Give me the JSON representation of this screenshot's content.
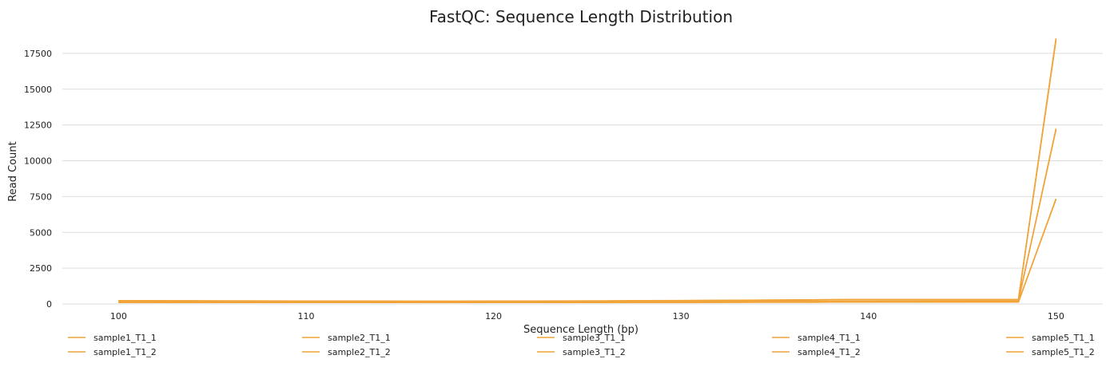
{
  "chart_data": {
    "type": "line",
    "title": "FastQC: Sequence Length Distribution",
    "xlabel": "Sequence Length (bp)",
    "ylabel": "Read Count",
    "xlim": [
      97,
      152.5
    ],
    "ylim": [
      0,
      19000
    ],
    "xticks": [
      100,
      110,
      120,
      130,
      140,
      150
    ],
    "yticks": [
      0,
      2500,
      5000,
      7500,
      10000,
      12500,
      15000,
      17500
    ],
    "grid": "horizontal",
    "legend_position": "bottom",
    "line_color": "#f0a43a",
    "x": [
      100,
      102,
      104,
      106,
      108,
      110,
      112,
      114,
      116,
      118,
      120,
      122,
      124,
      126,
      128,
      130,
      132,
      134,
      136,
      138,
      140,
      142,
      144,
      146,
      148,
      150
    ],
    "series": [
      {
        "name": "sample1_T1_1",
        "values": [
          230,
          225,
          220,
          215,
          210,
          205,
          200,
          195,
          190,
          190,
          200,
          205,
          210,
          215,
          230,
          240,
          250,
          270,
          280,
          300,
          310,
          320,
          320,
          320,
          320,
          18500
        ]
      },
      {
        "name": "sample1_T1_2",
        "values": [
          220,
          218,
          214,
          210,
          206,
          200,
          196,
          192,
          188,
          186,
          196,
          200,
          206,
          210,
          224,
          234,
          244,
          262,
          272,
          292,
          302,
          312,
          312,
          312,
          312,
          18450
        ]
      },
      {
        "name": "sample2_T1_1",
        "values": [
          150,
          150,
          148,
          146,
          145,
          145,
          146,
          148,
          150,
          152,
          150,
          150,
          152,
          155,
          160,
          165,
          170,
          175,
          180,
          185,
          190,
          195,
          200,
          205,
          210,
          12200
        ]
      },
      {
        "name": "sample2_T1_2",
        "values": [
          145,
          145,
          143,
          141,
          140,
          140,
          141,
          143,
          145,
          147,
          145,
          145,
          147,
          150,
          155,
          160,
          165,
          170,
          175,
          180,
          185,
          190,
          195,
          200,
          205,
          12150
        ]
      },
      {
        "name": "sample3_T1_1",
        "values": [
          100,
          100,
          100,
          100,
          100,
          100,
          100,
          100,
          100,
          100,
          100,
          100,
          100,
          105,
          110,
          110,
          115,
          120,
          120,
          125,
          130,
          130,
          135,
          140,
          140,
          7350
        ]
      },
      {
        "name": "sample3_T1_2",
        "values": [
          95,
          95,
          95,
          95,
          95,
          95,
          95,
          95,
          95,
          95,
          95,
          95,
          95,
          100,
          105,
          105,
          110,
          115,
          115,
          120,
          125,
          125,
          130,
          135,
          135,
          7300
        ]
      },
      {
        "name": "sample4_T1_1",
        "values": [
          235,
          230,
          226,
          220,
          215,
          210,
          205,
          200,
          195,
          195,
          205,
          210,
          215,
          220,
          235,
          245,
          255,
          275,
          285,
          305,
          315,
          325,
          325,
          325,
          325,
          18550
        ]
      },
      {
        "name": "sample4_T1_2",
        "values": [
          150,
          150,
          148,
          147,
          146,
          145,
          146,
          148,
          150,
          151,
          150,
          151,
          152,
          155,
          158,
          163,
          168,
          173,
          178,
          183,
          188,
          193,
          198,
          203,
          208,
          12250
        ]
      },
      {
        "name": "sample5_T1_1",
        "values": [
          210,
          208,
          205,
          203,
          200,
          198,
          196,
          194,
          192,
          190,
          195,
          200,
          205,
          210,
          220,
          230,
          240,
          255,
          265,
          280,
          290,
          300,
          300,
          300,
          300,
          18400
        ]
      },
      {
        "name": "sample5_T1_2",
        "values": [
          98,
          98,
          98,
          98,
          98,
          98,
          98,
          98,
          98,
          98,
          98,
          98,
          98,
          102,
          107,
          107,
          112,
          117,
          117,
          122,
          127,
          127,
          132,
          137,
          137,
          7320
        ]
      }
    ]
  }
}
